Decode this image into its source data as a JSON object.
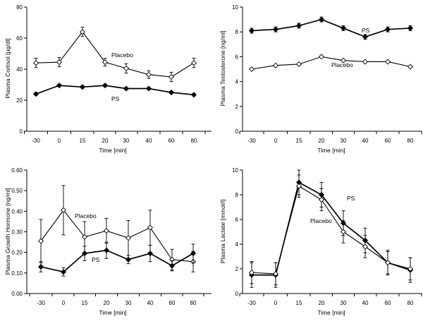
{
  "chart_data": [
    {
      "type": "line",
      "title": "",
      "xlabel": "Time [min]",
      "ylabel": "Plasma Cortisol [µg/dl]",
      "categories": [
        "-30",
        "0",
        "15",
        "20",
        "30",
        "40",
        "60",
        "80"
      ],
      "ylim": [
        0,
        80
      ],
      "yticks": [
        0,
        20,
        40,
        60,
        80
      ],
      "ytick_labels": [
        "0",
        "20",
        "40",
        "60",
        "80"
      ],
      "series": [
        {
          "name": "Placebo",
          "marker": "open-diamond",
          "values": [
            44,
            44.5,
            64,
            44.5,
            40.5,
            36.5,
            35,
            44
          ],
          "errors": [
            3,
            3,
            3,
            2.5,
            3,
            2.5,
            3,
            3
          ]
        },
        {
          "name": "PS",
          "marker": "filled-diamond",
          "values": [
            24,
            29.5,
            28.5,
            29.5,
            27.5,
            27.5,
            25,
            23.5
          ],
          "errors": [
            0.8,
            0.8,
            0.8,
            0.8,
            0.8,
            0.8,
            0.8,
            0.8
          ]
        }
      ]
    },
    {
      "type": "line",
      "title": "",
      "xlabel": "Time [min]",
      "ylabel": "Plasma Testosterone [ng/ml]",
      "categories": [
        "-30",
        "0",
        "15",
        "20",
        "30",
        "40",
        "60",
        "80"
      ],
      "ylim": [
        0,
        10
      ],
      "yticks": [
        0,
        2,
        4,
        6,
        8,
        10
      ],
      "ytick_labels": [
        "0",
        "2",
        "4",
        "6",
        "8",
        "10"
      ],
      "series": [
        {
          "name": "PS",
          "marker": "filled-diamond",
          "values": [
            8.1,
            8.2,
            8.5,
            9.0,
            8.3,
            7.6,
            8.2,
            8.3
          ],
          "errors": [
            0.2,
            0.2,
            0.2,
            0.2,
            0.2,
            0.2,
            0.2,
            0.2
          ]
        },
        {
          "name": "Placebo",
          "marker": "open-diamond",
          "values": [
            5.0,
            5.3,
            5.4,
            6.0,
            5.7,
            5.6,
            5.6,
            5.2
          ],
          "errors": [
            0.05,
            0.05,
            0.05,
            0.05,
            0.05,
            0.05,
            0.05,
            0.05
          ]
        }
      ]
    },
    {
      "type": "line",
      "title": "",
      "xlabel": "Time [min]",
      "ylabel": "Plasma Growth Hormone [ng/ml]",
      "categories": [
        "-30",
        "0",
        "15",
        "20",
        "30",
        "40",
        "60",
        "80"
      ],
      "ylim": [
        0,
        0.6
      ],
      "yticks": [
        0,
        0.1,
        0.2,
        0.3,
        0.4,
        0.5,
        0.6
      ],
      "ytick_labels": [
        "0.00",
        "0.10",
        "0.20",
        "0.30",
        "0.40",
        "0.50",
        "0.60"
      ],
      "series": [
        {
          "name": "Placebo",
          "marker": "open-diamond",
          "values": [
            0.255,
            0.405,
            0.275,
            0.305,
            0.27,
            0.32,
            0.165,
            0.155
          ],
          "errors": [
            0.105,
            0.12,
            0.075,
            0.06,
            0.085,
            0.085,
            0.05,
            0.05
          ]
        },
        {
          "name": "PS",
          "marker": "filled-diamond",
          "values": [
            0.13,
            0.105,
            0.195,
            0.21,
            0.165,
            0.195,
            0.135,
            0.195
          ],
          "errors": [
            0.025,
            0.02,
            0.035,
            0.04,
            0.02,
            0.04,
            0.025,
            0.045
          ]
        }
      ]
    },
    {
      "type": "line",
      "title": "",
      "xlabel": "Time [min]",
      "ylabel": "Plasma Lactate [mmol/l]",
      "categories": [
        "-30",
        "0",
        "15",
        "20",
        "30",
        "40",
        "60",
        "80"
      ],
      "ylim": [
        0,
        10
      ],
      "yticks": [
        0,
        2,
        4,
        6,
        8,
        10
      ],
      "ytick_labels": [
        "0",
        "2",
        "4",
        "6",
        "8",
        "10"
      ],
      "series": [
        {
          "name": "PS",
          "marker": "filled-diamond",
          "values": [
            1.5,
            1.5,
            9.0,
            8.0,
            5.7,
            4.3,
            2.5,
            1.9
          ],
          "errors": [
            1.0,
            1.0,
            1.0,
            1.0,
            1.0,
            1.0,
            1.0,
            1.0
          ]
        },
        {
          "name": "Placebo",
          "marker": "open-diamond",
          "values": [
            1.7,
            1.6,
            8.7,
            7.6,
            5.0,
            3.8,
            2.5,
            2.0
          ],
          "errors": [
            0.9,
            0.9,
            0.9,
            0.9,
            0.9,
            0.9,
            0.9,
            0.9
          ]
        }
      ]
    }
  ]
}
